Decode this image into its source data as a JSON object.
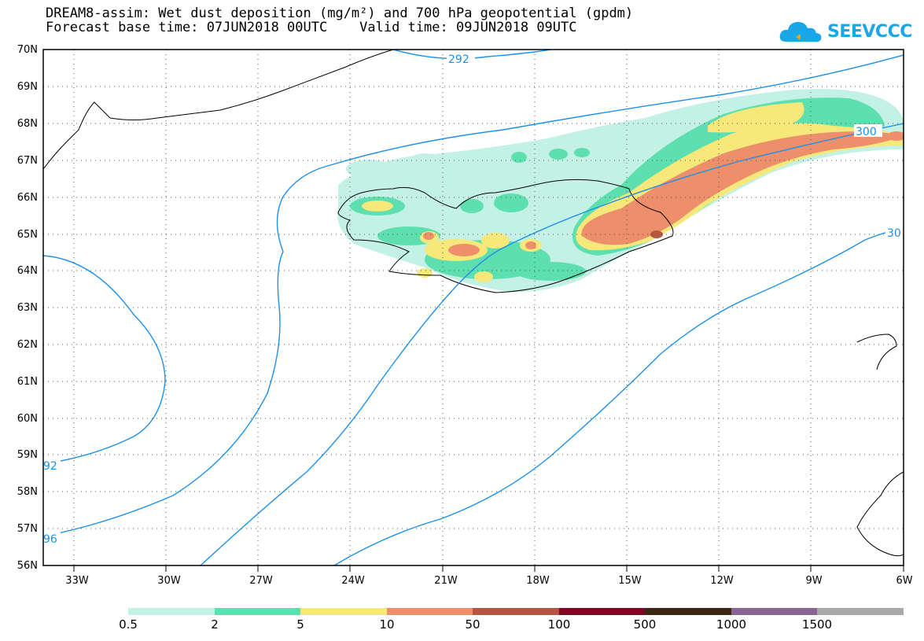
{
  "title": {
    "line1": "DREAM8-assim: Wet dust deposition (mg/m²) and 700 hPa geopotential (gpdm)",
    "line2": "Forecast base time: 07JUN2018 00UTC    Valid time: 09JUN2018 09UTC"
  },
  "logo": {
    "text": "SEEVCCC",
    "icon": "cloud-icon"
  },
  "lat_labels": [
    "70N",
    "69N",
    "68N",
    "67N",
    "66N",
    "65N",
    "64N",
    "63N",
    "62N",
    "61N",
    "60N",
    "59N",
    "58N",
    "57N",
    "56N"
  ],
  "lon_labels": [
    "33W",
    "30W",
    "27W",
    "24W",
    "21W",
    "18W",
    "15W",
    "12W",
    "9W",
    "6W"
  ],
  "contour_labels": [
    "292",
    "300",
    "30",
    "92",
    "96"
  ],
  "legend": {
    "labels": [
      "0.5",
      "2",
      "5",
      "10",
      "50",
      "100",
      "500",
      "1000",
      "1500"
    ],
    "colors": [
      "#c4f1e6",
      "#5ddfaf",
      "#f6e87a",
      "#ec8f6a",
      "#b45742",
      "#7d0a25",
      "#3c2614",
      "#8a6494",
      "#a9a9a9"
    ]
  },
  "colors": {
    "contour": "#1e90e8",
    "coast": "#000000"
  }
}
